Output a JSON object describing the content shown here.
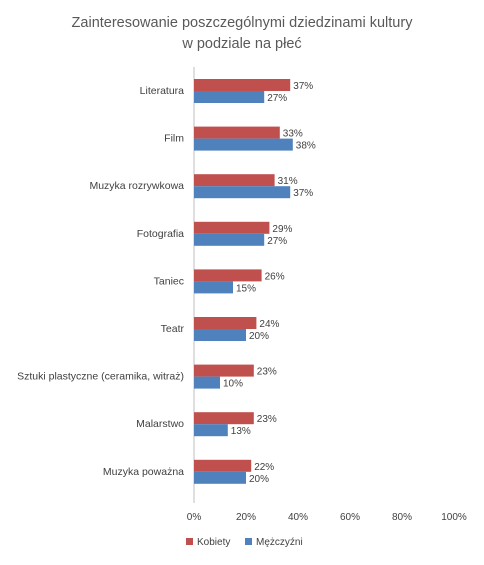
{
  "chart_data": {
    "type": "bar",
    "orientation": "horizontal",
    "title": "Zainteresowanie poszczególnymi dziedzinami kultury",
    "subtitle": "w podziale na płeć",
    "categories": [
      "Literatura",
      "Film",
      "Muzyka rozrywkowa",
      "Fotografia",
      "Taniec",
      "Teatr",
      "Sztuki plastyczne (ceramika, witraż)",
      "Malarstwo",
      "Muzyka poważna"
    ],
    "series": [
      {
        "name": "Kobiety",
        "color": "#c0504d",
        "values": [
          37,
          33,
          31,
          29,
          26,
          24,
          23,
          23,
          22
        ],
        "labels": [
          "37%",
          "33%",
          "31%",
          "29%",
          "26%",
          "24%",
          "23%",
          "23%",
          "22%"
        ]
      },
      {
        "name": "Mężczyźni",
        "color": "#4f81bd",
        "values": [
          27,
          38,
          37,
          27,
          15,
          20,
          10,
          13,
          20
        ],
        "labels": [
          "27%",
          "38%",
          "37%",
          "27%",
          "15%",
          "20%",
          "10%",
          "13%",
          "20%"
        ]
      }
    ],
    "xlim": [
      0,
      100
    ],
    "xticks": [
      0,
      20,
      40,
      60,
      80,
      100
    ],
    "xtick_labels": [
      "0%",
      "20%",
      "40%",
      "60%",
      "80%",
      "100%"
    ],
    "grid": false,
    "legend": "bottom"
  }
}
